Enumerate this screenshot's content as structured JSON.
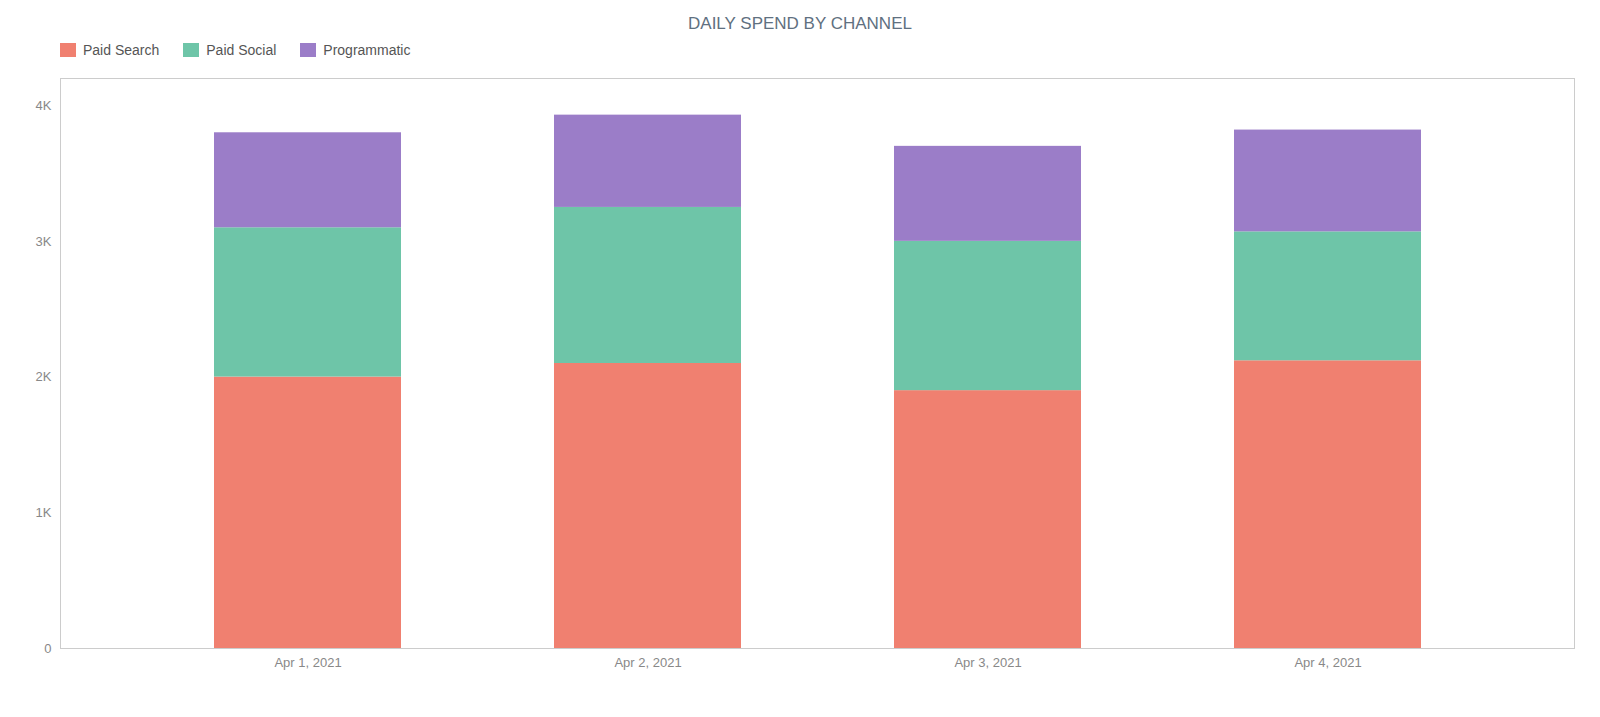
{
  "chart_data": {
    "type": "bar",
    "title": "DAILY SPEND BY CHANNEL",
    "categories": [
      "Apr 1, 2021",
      "Apr 2, 2021",
      "Apr 3, 2021",
      "Apr 4, 2021"
    ],
    "series": [
      {
        "name": "Paid Search",
        "color": "#F08070",
        "values": [
          2000,
          2100,
          1900,
          2120
        ]
      },
      {
        "name": "Paid Social",
        "color": "#6EC5A8",
        "values": [
          1100,
          1150,
          1100,
          950
        ]
      },
      {
        "name": "Programmatic",
        "color": "#9B7DC8",
        "values": [
          700,
          680,
          700,
          750
        ]
      }
    ],
    "stacked": true,
    "ylim": [
      0,
      4200
    ],
    "yticks": [
      0,
      {
        "value": 1000,
        "label": "1K"
      },
      {
        "value": 2000,
        "label": "2K"
      },
      {
        "value": 3000,
        "label": "3K"
      },
      {
        "value": 4000,
        "label": "4K"
      }
    ],
    "grid": false,
    "legend": "upper left"
  }
}
